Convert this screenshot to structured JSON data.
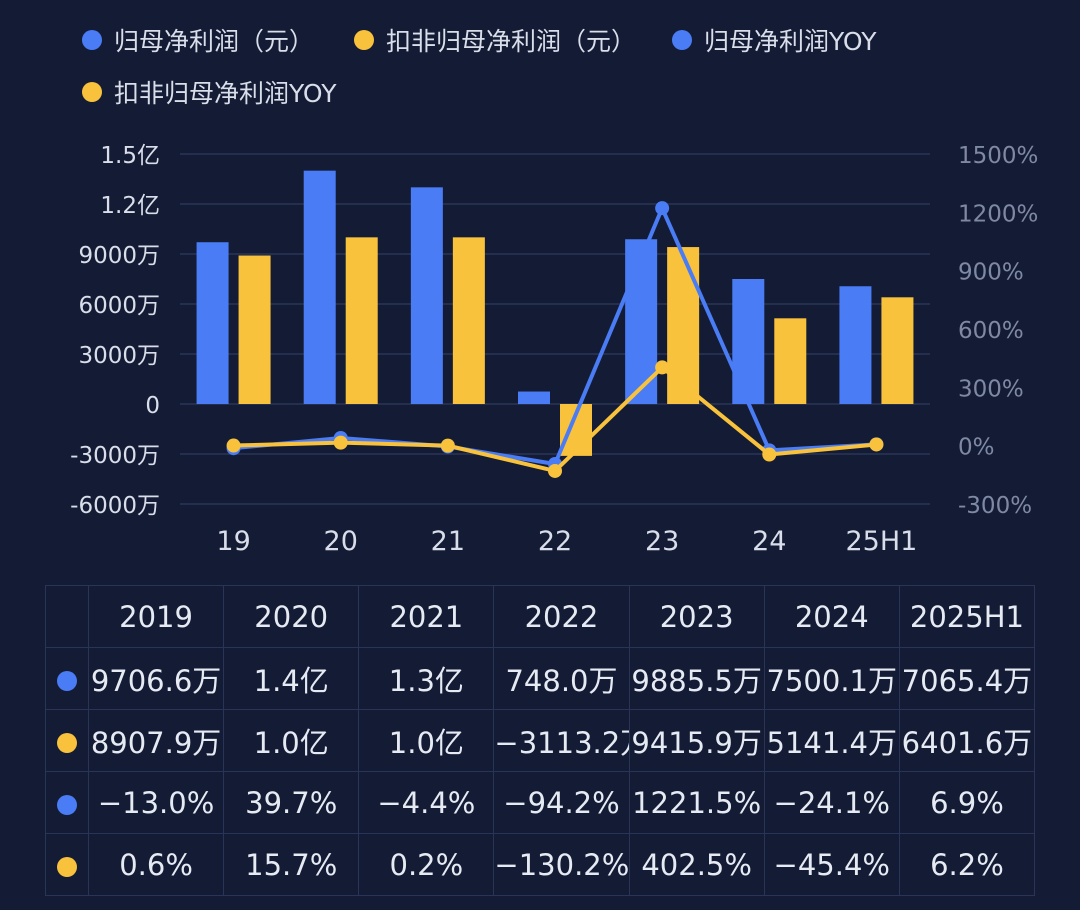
{
  "colors": {
    "blue": "#4a7cf6",
    "yellow": "#f9c23c",
    "background": "#141c35",
    "grid": "#2a3456"
  },
  "legend": [
    {
      "label": "归母净利润（元）",
      "color": "#4a7cf6"
    },
    {
      "label": "扣非归母净利润（元）",
      "color": "#f9c23c"
    },
    {
      "label": "归母净利润YOY",
      "color": "#4a7cf6"
    },
    {
      "label": "扣非归母净利润YOY",
      "color": "#f9c23c"
    }
  ],
  "chart_data": {
    "type": "bar",
    "categories": [
      "19",
      "20",
      "21",
      "22",
      "23",
      "24",
      "25H1"
    ],
    "series": [
      {
        "name": "归母净利润（元）",
        "type": "bar",
        "axis": "left",
        "color": "#4a7cf6",
        "values": [
          97066000,
          140000000,
          130000000,
          7480000,
          98855000,
          75001000,
          70654000
        ]
      },
      {
        "name": "扣非归母净利润（元）",
        "type": "bar",
        "axis": "left",
        "color": "#f9c23c",
        "values": [
          89079000,
          100000000,
          100000000,
          -31132000,
          94159000,
          51414000,
          64016000
        ]
      },
      {
        "name": "归母净利润YOY",
        "type": "line",
        "axis": "right",
        "color": "#4a7cf6",
        "values": [
          -13.0,
          39.7,
          -4.4,
          -94.2,
          1221.5,
          -24.1,
          6.9
        ]
      },
      {
        "name": "扣非归母净利润YOY",
        "type": "line",
        "axis": "right",
        "color": "#f9c23c",
        "values": [
          0.6,
          15.7,
          0.2,
          -130.2,
          402.5,
          -45.4,
          6.2
        ]
      }
    ],
    "y_left": {
      "ylim": [
        -60000000,
        150000000
      ],
      "ticks": [
        150000000,
        120000000,
        90000000,
        60000000,
        30000000,
        0,
        -30000000,
        -60000000
      ],
      "tick_labels": [
        "1.5亿",
        "1.2亿",
        "9000万",
        "6000万",
        "3000万",
        "0",
        "-3000万",
        "-6000万"
      ]
    },
    "y_right": {
      "ylim": [
        -300,
        1500
      ],
      "ticks": [
        1500,
        1200,
        900,
        600,
        300,
        0,
        -300
      ],
      "tick_labels": [
        "1500%",
        "1200%",
        "900%",
        "600%",
        "300%",
        "0%",
        "-300%"
      ]
    },
    "grid": true,
    "legend_position": "top-left"
  },
  "table": {
    "headers": [
      "2019",
      "2020",
      "2021",
      "2022",
      "2023",
      "2024",
      "2025H1"
    ],
    "rows": [
      {
        "color": "#4a7cf6",
        "cells": [
          "9706.6万",
          "1.4亿",
          "1.3亿",
          "748.0万",
          "9885.5万",
          "7500.1万",
          "7065.4万"
        ]
      },
      {
        "color": "#f9c23c",
        "cells": [
          "8907.9万",
          "1.0亿",
          "1.0亿",
          "−3113.2万",
          "9415.9万",
          "5141.4万",
          "6401.6万"
        ]
      },
      {
        "color": "#4a7cf6",
        "cells": [
          "−13.0%",
          "39.7%",
          "−4.4%",
          "−94.2%",
          "1221.5%",
          "−24.1%",
          "6.9%"
        ]
      },
      {
        "color": "#f9c23c",
        "cells": [
          "0.6%",
          "15.7%",
          "0.2%",
          "−130.2%",
          "402.5%",
          "−45.4%",
          "6.2%"
        ]
      }
    ]
  }
}
